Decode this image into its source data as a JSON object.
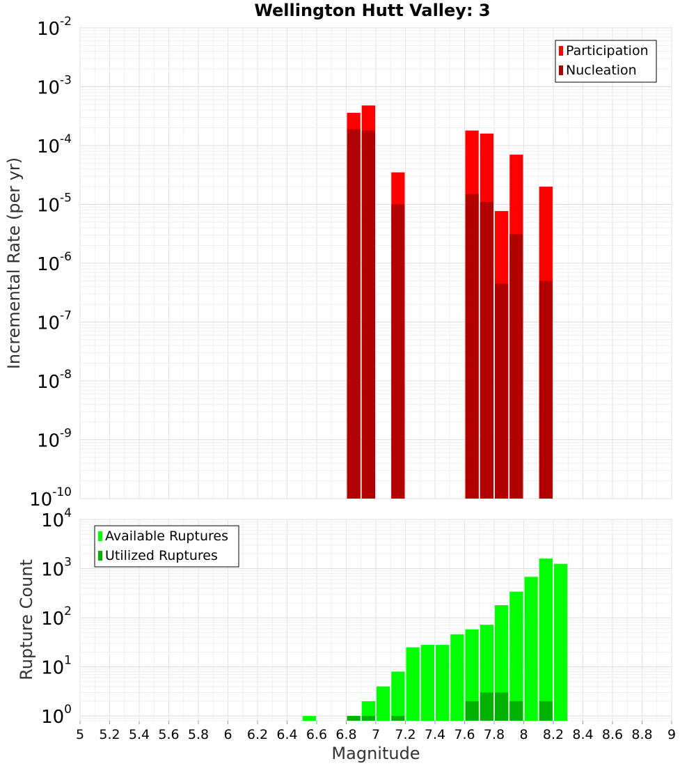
{
  "title": "Wellington Hutt Valley: 3",
  "chart_data": [
    {
      "type": "bar",
      "ylabel": "Incremental Rate (per yr)",
      "yscale": "log",
      "ylim": [
        1e-10,
        0.01
      ],
      "y_tick_exponents": [
        "-10",
        "-9",
        "-8",
        "-7",
        "-6",
        "-5",
        "-4",
        "-3",
        "-2"
      ],
      "y_tick_base": "10",
      "grid": true,
      "legend": "top-right",
      "colors": {
        "participation": "#ff0000",
        "nucleation": "#b20000"
      },
      "series": [
        {
          "name": "Participation",
          "x": [
            6.85,
            6.95,
            7.15,
            7.65,
            7.75,
            7.85,
            7.95,
            8.15
          ],
          "values": [
            0.00036,
            0.00048,
            3.5e-05,
            0.00018,
            0.00016,
            7.7e-06,
            7e-05,
            2e-05
          ]
        },
        {
          "name": "Nucleation",
          "x": [
            6.85,
            6.95,
            7.15,
            7.65,
            7.75,
            7.85,
            7.95,
            8.15
          ],
          "values": [
            0.00019,
            0.00018,
            1e-05,
            1.5e-05,
            1.1e-05,
            4.5e-07,
            3.1e-06,
            5e-07
          ]
        }
      ]
    },
    {
      "type": "bar",
      "xlabel": "Magnitude",
      "ylabel": "Rupture Count",
      "yscale": "log",
      "ylim": [
        0.8,
        10000
      ],
      "y_tick_exponents": [
        "0",
        "1",
        "2",
        "3",
        "4"
      ],
      "y_tick_base": "10",
      "xlim": [
        5,
        9
      ],
      "x_ticks": [
        "5",
        "5.2",
        "5.4",
        "5.6",
        "5.8",
        "6",
        "6.2",
        "6.4",
        "6.6",
        "6.8",
        "7",
        "7.2",
        "7.4",
        "7.6",
        "7.8",
        "8",
        "8.2",
        "8.4",
        "8.6",
        "8.8",
        "9"
      ],
      "grid": true,
      "legend": "top-left",
      "colors": {
        "available": "#00ff00",
        "utilized": "#00b200"
      },
      "series": [
        {
          "name": "Available Ruptures",
          "x": [
            6.55,
            6.85,
            6.95,
            7.05,
            7.15,
            7.25,
            7.35,
            7.45,
            7.55,
            7.65,
            7.75,
            7.85,
            7.95,
            8.05,
            8.15,
            8.25
          ],
          "values": [
            1,
            1,
            2,
            4,
            8,
            25,
            28,
            28,
            46,
            58,
            72,
            180,
            340,
            680,
            1600,
            1250
          ]
        },
        {
          "name": "Utilized Ruptures",
          "x": [
            6.85,
            6.95,
            7.15,
            7.65,
            7.75,
            7.85,
            7.95,
            8.15
          ],
          "values": [
            1,
            1,
            1,
            2,
            3,
            3,
            2,
            2
          ]
        }
      ]
    }
  ]
}
